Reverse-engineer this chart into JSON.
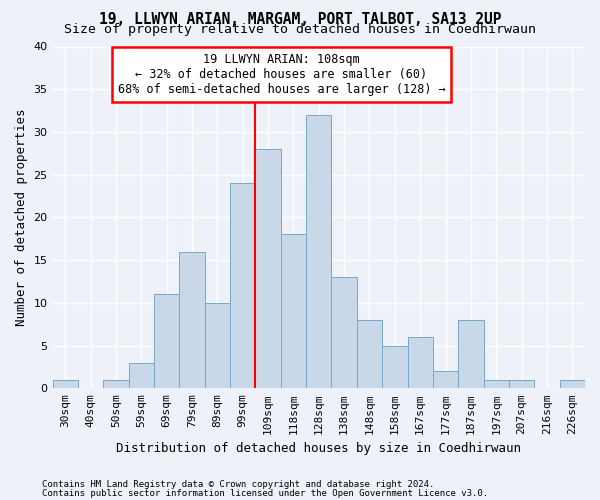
{
  "title1": "19, LLWYN ARIAN, MARGAM, PORT TALBOT, SA13 2UP",
  "title2": "Size of property relative to detached houses in Coedhirwaun",
  "xlabel": "Distribution of detached houses by size in Coedhirwaun",
  "ylabel": "Number of detached properties",
  "footnote1": "Contains HM Land Registry data © Crown copyright and database right 2024.",
  "footnote2": "Contains public sector information licensed under the Open Government Licence v3.0.",
  "categories": [
    "30sqm",
    "40sqm",
    "50sqm",
    "59sqm",
    "69sqm",
    "79sqm",
    "89sqm",
    "99sqm",
    "109sqm",
    "118sqm",
    "128sqm",
    "138sqm",
    "148sqm",
    "158sqm",
    "167sqm",
    "177sqm",
    "187sqm",
    "197sqm",
    "207sqm",
    "216sqm",
    "226sqm"
  ],
  "values": [
    1,
    0,
    1,
    3,
    11,
    16,
    10,
    24,
    28,
    18,
    32,
    13,
    8,
    5,
    6,
    2,
    8,
    1,
    1,
    0,
    1
  ],
  "bar_color": "#c8d8e8",
  "bar_edge_color": "#7aa8c8",
  "vline_index": 8,
  "annotation_line1": "19 LLWYN ARIAN: 108sqm",
  "annotation_line2": "← 32% of detached houses are smaller (60)",
  "annotation_line3": "68% of semi-detached houses are larger (128) →",
  "annotation_box_facecolor": "white",
  "annotation_box_edgecolor": "red",
  "vline_color": "red",
  "ylim": [
    0,
    40
  ],
  "yticks": [
    0,
    5,
    10,
    15,
    20,
    25,
    30,
    35,
    40
  ],
  "background_color": "#eef2f8",
  "grid_color": "white",
  "title1_fontsize": 10.5,
  "title2_fontsize": 9.5,
  "axis_label_fontsize": 9,
  "tick_fontsize": 8,
  "annotation_fontsize": 8.5,
  "footnote_fontsize": 6.5
}
